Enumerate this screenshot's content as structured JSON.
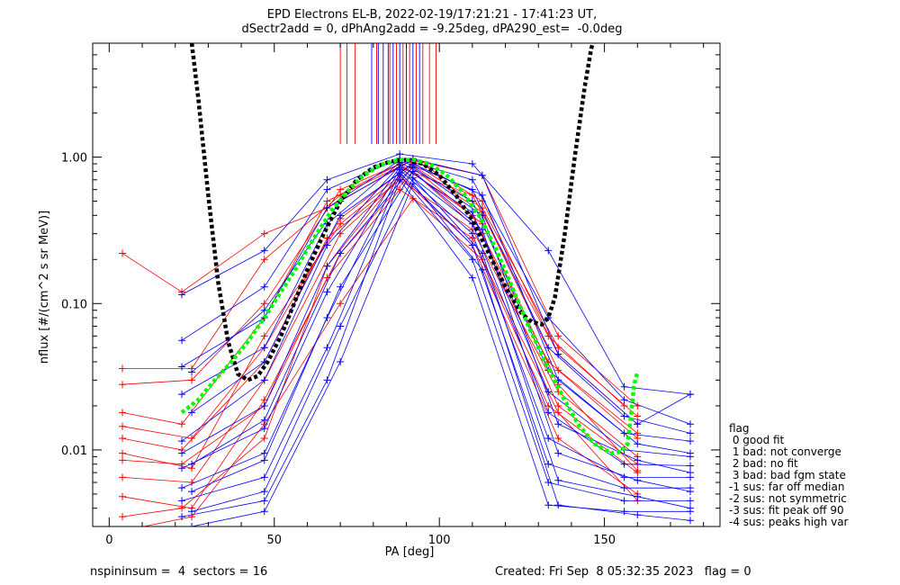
{
  "title_line1": "EPD Electrons EL-B, 2022-02-19/17:21:21 - 17:41:23 UT,",
  "title_line2": "dSectr2add = 0, dPhAng2add = -9.25deg, dPA290_est=  -0.0deg",
  "footer_left": "nspininsum =  4  sectors = 16",
  "footer_right": "Created: Fri Sep  8 05:32:35 2023   flag = 0",
  "legend": {
    "title": "flag",
    "items": [
      " 0 good fit",
      " 1 bad: not converge",
      " 2 bad: no fit",
      " 3 bad: bad fgm state",
      "-1 sus: far off median",
      "-2 sus: not symmetric",
      "-3 sus: fit peak off 90",
      "-4 sus: peaks high var"
    ]
  },
  "colors": {
    "red": "#ff0000",
    "blue": "#0000ff",
    "black": "#000000",
    "green": "#00ff00"
  },
  "chart_data": {
    "type": "line",
    "title": "EPD Electrons EL-B, 2022-02-19/17:21:21 - 17:41:23 UT,",
    "xlabel": "PA [deg]",
    "ylabel": "nflux [#/(cm^2 s sr MeV)]",
    "xlim": [
      -5,
      185
    ],
    "ylim": [
      0.003,
      6
    ],
    "yscale": "log",
    "xticks": [
      0,
      50,
      100,
      150
    ],
    "xticklabels": [
      "0",
      "50",
      "100",
      "150"
    ],
    "yticks": [
      0.01,
      0.1,
      1.0
    ],
    "yticklabels": [
      "0.01",
      "0.10",
      "1.00"
    ],
    "pa_bins": [
      4,
      22,
      25,
      47,
      66,
      70,
      88,
      92,
      110,
      113,
      133,
      136,
      156,
      160,
      176
    ],
    "series": [
      {
        "color": "red",
        "x": [
          4,
          22,
          47,
          66,
          88,
          110,
          133,
          156
        ],
        "y": [
          0.22,
          0.12,
          0.3,
          0.45,
          0.85,
          0.55,
          0.06,
          0.02
        ]
      },
      {
        "color": "red",
        "x": [
          4,
          25,
          47,
          70,
          92,
          113,
          136,
          160
        ],
        "y": [
          0.036,
          0.036,
          0.2,
          0.55,
          0.95,
          0.75,
          0.06,
          0.02
        ]
      },
      {
        "color": "red",
        "x": [
          4,
          25,
          47,
          70,
          92,
          113,
          136,
          160
        ],
        "y": [
          0.0095,
          0.0075,
          0.06,
          0.35,
          0.88,
          0.42,
          0.035,
          0.012
        ]
      },
      {
        "color": "red",
        "x": [
          4,
          25,
          47,
          70,
          92,
          113,
          136,
          160
        ],
        "y": [
          0.0048,
          0.004,
          0.022,
          0.22,
          0.8,
          0.3,
          0.02,
          0.008
        ]
      },
      {
        "color": "red",
        "x": [
          4,
          22,
          47,
          66,
          88,
          110,
          136,
          160
        ],
        "y": [
          0.012,
          0.01,
          0.04,
          0.28,
          0.7,
          0.32,
          0.025,
          0.009
        ]
      },
      {
        "color": "red",
        "x": [
          4,
          25,
          47,
          70,
          92,
          113,
          136,
          160
        ],
        "y": [
          0.0028,
          0.0035,
          0.015,
          0.1,
          0.52,
          0.2,
          0.018,
          0.0045
        ]
      },
      {
        "color": "red",
        "x": [
          4,
          25,
          47,
          70,
          92,
          113,
          136,
          160
        ],
        "y": [
          0.028,
          0.03,
          0.1,
          0.6,
          0.98,
          0.5,
          0.045,
          0.015
        ]
      },
      {
        "color": "red",
        "x": [
          4,
          22,
          47,
          66,
          88,
          110,
          133,
          160
        ],
        "y": [
          0.018,
          0.015,
          0.08,
          0.5,
          0.9,
          0.4,
          0.04,
          0.013
        ]
      },
      {
        "color": "red",
        "x": [
          4,
          25,
          47,
          70,
          92,
          113,
          136,
          160
        ],
        "y": [
          0.0065,
          0.006,
          0.03,
          0.3,
          0.85,
          0.35,
          0.028,
          0.0072
        ]
      },
      {
        "color": "red",
        "x": [
          4,
          22,
          47,
          66,
          88,
          110,
          136,
          160
        ],
        "y": [
          0.0035,
          0.004,
          0.012,
          0.18,
          0.75,
          0.25,
          0.012,
          0.005
        ]
      },
      {
        "color": "red",
        "x": [
          4,
          25,
          47,
          70,
          92,
          113,
          136,
          160
        ],
        "y": [
          0.0145,
          0.012,
          0.05,
          0.38,
          0.92,
          0.45,
          0.05,
          0.017
        ]
      },
      {
        "color": "red",
        "x": [
          4,
          22,
          47,
          66,
          88,
          110,
          133,
          160
        ],
        "y": [
          0.0085,
          0.008,
          0.02,
          0.15,
          0.6,
          0.28,
          0.02,
          0.007
        ]
      },
      {
        "color": "blue",
        "x": [
          22,
          47,
          66,
          88,
          110,
          133,
          156,
          176
        ],
        "y": [
          0.115,
          0.23,
          0.7,
          1.05,
          0.9,
          0.23,
          0.027,
          0.024
        ]
      },
      {
        "color": "blue",
        "x": [
          22,
          47,
          66,
          88,
          110,
          133,
          156,
          176
        ],
        "y": [
          0.056,
          0.13,
          0.6,
          0.98,
          0.7,
          0.08,
          0.022,
          0.015
        ]
      },
      {
        "color": "blue",
        "x": [
          22,
          47,
          66,
          88,
          110,
          133,
          156,
          176
        ],
        "y": [
          0.037,
          0.08,
          0.45,
          0.95,
          0.6,
          0.05,
          0.017,
          0.013
        ]
      },
      {
        "color": "blue",
        "x": [
          22,
          47,
          66,
          88,
          110,
          133,
          156,
          176
        ],
        "y": [
          0.024,
          0.05,
          0.35,
          0.92,
          0.5,
          0.035,
          0.013,
          0.0115
        ]
      },
      {
        "color": "blue",
        "x": [
          22,
          47,
          66,
          88,
          110,
          133,
          156,
          176
        ],
        "y": [
          0.0115,
          0.03,
          0.25,
          0.88,
          0.42,
          0.025,
          0.01,
          0.009
        ]
      },
      {
        "color": "blue",
        "x": [
          22,
          47,
          66,
          88,
          110,
          133,
          156,
          176
        ],
        "y": [
          0.0095,
          0.02,
          0.18,
          0.85,
          0.35,
          0.018,
          0.008,
          0.0078
        ]
      },
      {
        "color": "blue",
        "x": [
          22,
          47,
          66,
          88,
          110,
          133,
          156,
          176
        ],
        "y": [
          0.0075,
          0.014,
          0.12,
          0.82,
          0.3,
          0.012,
          0.0065,
          0.0065
        ]
      },
      {
        "color": "blue",
        "x": [
          22,
          47,
          66,
          88,
          110,
          133,
          156,
          176
        ],
        "y": [
          0.0055,
          0.0095,
          0.08,
          0.78,
          0.25,
          0.008,
          0.0055,
          0.0055
        ]
      },
      {
        "color": "blue",
        "x": [
          22,
          47,
          66,
          88,
          110,
          133,
          156,
          176
        ],
        "y": [
          0.0045,
          0.0065,
          0.05,
          0.75,
          0.2,
          0.006,
          0.0045,
          0.0045
        ]
      },
      {
        "color": "blue",
        "x": [
          22,
          47,
          66,
          88,
          110,
          133,
          156,
          176
        ],
        "y": [
          0.0035,
          0.0045,
          0.03,
          0.7,
          0.15,
          0.0042,
          0.0038,
          0.0038
        ]
      },
      {
        "color": "blue",
        "x": [
          25,
          47,
          70,
          92,
          113,
          136,
          160,
          176
        ],
        "y": [
          0.034,
          0.09,
          0.5,
          0.97,
          0.75,
          0.045,
          0.015,
          0.024
        ]
      },
      {
        "color": "blue",
        "x": [
          25,
          47,
          70,
          92,
          113,
          136,
          160,
          176
        ],
        "y": [
          0.018,
          0.04,
          0.4,
          0.9,
          0.55,
          0.03,
          0.011,
          0.0095
        ]
      },
      {
        "color": "blue",
        "x": [
          25,
          47,
          70,
          92,
          113,
          136,
          160,
          176
        ],
        "y": [
          0.008,
          0.016,
          0.22,
          0.86,
          0.4,
          0.015,
          0.0085,
          0.007
        ]
      },
      {
        "color": "blue",
        "x": [
          25,
          47,
          70,
          92,
          113,
          136,
          160,
          176
        ],
        "y": [
          0.0052,
          0.0085,
          0.13,
          0.8,
          0.32,
          0.0095,
          0.0062,
          0.0052
        ]
      },
      {
        "color": "blue",
        "x": [
          25,
          47,
          70,
          92,
          113,
          136,
          160,
          176
        ],
        "y": [
          0.0038,
          0.0052,
          0.07,
          0.72,
          0.22,
          0.0062,
          0.0048,
          0.004
        ]
      },
      {
        "color": "blue",
        "x": [
          25,
          47,
          70,
          92,
          113,
          136,
          160,
          176
        ],
        "y": [
          0.003,
          0.0038,
          0.04,
          0.66,
          0.17,
          0.0042,
          0.0036,
          0.0033
        ]
      }
    ],
    "fit_black_left": {
      "x": [
        25,
        27,
        30,
        33,
        36,
        39,
        42,
        45,
        48,
        52,
        56,
        60,
        65,
        70,
        75,
        80,
        85,
        90
      ],
      "y": [
        6,
        2.5,
        0.55,
        0.14,
        0.055,
        0.033,
        0.03,
        0.032,
        0.04,
        0.06,
        0.1,
        0.17,
        0.3,
        0.5,
        0.7,
        0.85,
        0.93,
        0.96
      ]
    },
    "fit_black_right": {
      "x": [
        90,
        95,
        100,
        105,
        110,
        115,
        120,
        125,
        128,
        131,
        133,
        135,
        138,
        141,
        144,
        146,
        147
      ],
      "y": [
        0.96,
        0.9,
        0.75,
        0.55,
        0.37,
        0.22,
        0.13,
        0.085,
        0.075,
        0.072,
        0.08,
        0.11,
        0.3,
        1.0,
        3.0,
        5.5,
        6.5
      ]
    },
    "fit_green": {
      "x": [
        22,
        27,
        32,
        37,
        42,
        47,
        52,
        57,
        62,
        67,
        72,
        77,
        82,
        87,
        92,
        97,
        102,
        107,
        112,
        117,
        122,
        127,
        132,
        137,
        142,
        147,
        152,
        155,
        157,
        158,
        159,
        160
      ],
      "y": [
        0.018,
        0.022,
        0.03,
        0.04,
        0.055,
        0.08,
        0.12,
        0.18,
        0.28,
        0.42,
        0.58,
        0.75,
        0.88,
        0.95,
        0.96,
        0.9,
        0.76,
        0.58,
        0.4,
        0.24,
        0.13,
        0.07,
        0.04,
        0.024,
        0.015,
        0.011,
        0.0095,
        0.0097,
        0.011,
        0.017,
        0.028,
        0.034
      ]
    },
    "top_ticks": {
      "red": [
        70,
        72,
        74.5,
        81,
        85,
        87,
        89,
        91,
        93,
        95,
        97,
        99
      ],
      "blue": [
        79.5,
        81.5,
        83,
        84.5,
        86,
        88,
        90,
        92,
        94
      ]
    }
  }
}
